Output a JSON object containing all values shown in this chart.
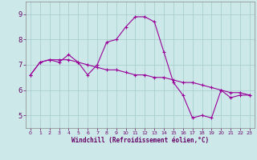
{
  "line1_x": [
    0,
    1,
    2,
    3,
    4,
    5,
    6,
    7,
    8,
    9,
    10,
    11,
    12,
    13,
    14,
    15,
    16,
    17,
    18,
    19,
    20,
    21,
    22,
    23
  ],
  "line1_y": [
    6.6,
    7.1,
    7.2,
    7.1,
    7.4,
    7.1,
    6.6,
    7.0,
    7.9,
    8.0,
    8.5,
    8.9,
    8.9,
    8.7,
    7.5,
    6.3,
    5.8,
    4.9,
    5.0,
    4.9,
    6.0,
    5.7,
    5.8,
    5.8
  ],
  "line2_x": [
    0,
    1,
    2,
    3,
    4,
    5,
    6,
    7,
    8,
    9,
    10,
    11,
    12,
    13,
    14,
    15,
    16,
    17,
    18,
    19,
    20,
    21,
    22,
    23
  ],
  "line2_y": [
    6.6,
    7.1,
    7.2,
    7.2,
    7.2,
    7.1,
    7.0,
    6.9,
    6.8,
    6.8,
    6.7,
    6.6,
    6.6,
    6.5,
    6.5,
    6.4,
    6.3,
    6.3,
    6.2,
    6.1,
    6.0,
    5.9,
    5.9,
    5.8
  ],
  "line_color": "#990099",
  "marker": "+",
  "bg_color": "#cce8e8",
  "grid_color": "#aacece",
  "ylim": [
    4.5,
    9.5
  ],
  "xlim": [
    -0.5,
    23.5
  ],
  "yticks": [
    5,
    6,
    7,
    8,
    9
  ],
  "xticks": [
    0,
    1,
    2,
    3,
    4,
    5,
    6,
    7,
    8,
    9,
    10,
    11,
    12,
    13,
    14,
    15,
    16,
    17,
    18,
    19,
    20,
    21,
    22,
    23
  ],
  "xlabel": "Windchill (Refroidissement éolien,°C)",
  "tick_color": "#660066",
  "label_color": "#660066"
}
